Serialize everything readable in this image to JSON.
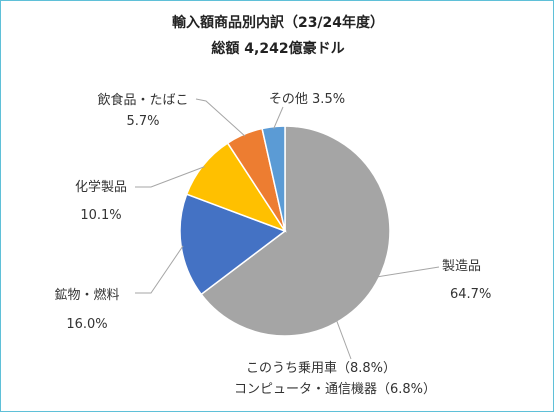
{
  "chart_data": {
    "type": "pie",
    "title": "輸入額商品別内訳（23/24年度）",
    "subtitle": "総額 4,242億豪ドル",
    "categories": [
      "製造品",
      "鉱物・燃料",
      "化学製品",
      "飲食品・たばこ",
      "その他"
    ],
    "values": [
      64.7,
      16.0,
      10.1,
      5.7,
      3.5
    ],
    "value_labels": [
      "64.7%",
      "16.0%",
      "10.1%",
      "5.7%",
      "3.5%"
    ],
    "label_texts": [
      "製造品",
      "鉱物・燃料",
      "化学製品",
      "飲食品・たばこ",
      "その他 3.5%"
    ],
    "colors": [
      "#a5a5a5",
      "#4472c4",
      "#ffc000",
      "#ed7d31",
      "#5b9bd5"
    ],
    "start_angle_deg": 0,
    "direction": "clockwise",
    "annotation": {
      "line1": "このうち乗用車（8.8%）",
      "line2": "コンピュータ・通信機器（6.8%）"
    },
    "legend": "none"
  }
}
